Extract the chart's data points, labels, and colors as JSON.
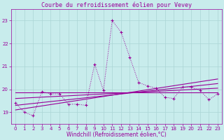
{
  "title": "Courbe du refroidissement éolien pour Vevey",
  "xlabel": "Windchill (Refroidissement éolien,°C)",
  "bg_color": "#c8ecec",
  "grid_color": "#aad4d4",
  "line_color": "#990099",
  "xlim": [
    -0.5,
    23.5
  ],
  "ylim": [
    18.5,
    23.5
  ],
  "yticks": [
    19,
    20,
    21,
    22,
    23
  ],
  "xticks": [
    0,
    1,
    2,
    3,
    4,
    5,
    6,
    7,
    8,
    9,
    10,
    11,
    12,
    13,
    14,
    15,
    16,
    17,
    18,
    19,
    20,
    21,
    22,
    23
  ],
  "series1_x": [
    0,
    1,
    2,
    3,
    4,
    5,
    6,
    7,
    8,
    9,
    10,
    11,
    12,
    13,
    14,
    15,
    16,
    17,
    18,
    19,
    20,
    21,
    22,
    23
  ],
  "series1_y": [
    19.4,
    19.0,
    18.85,
    19.9,
    19.8,
    19.8,
    19.35,
    19.35,
    19.3,
    21.1,
    19.95,
    23.0,
    22.5,
    21.4,
    20.3,
    20.15,
    20.05,
    19.65,
    19.6,
    20.1,
    20.1,
    19.95,
    19.55,
    19.8
  ],
  "line1_x": [
    0,
    23
  ],
  "line1_y": [
    19.6,
    20.05
  ],
  "line2_x": [
    0,
    23
  ],
  "line2_y": [
    19.3,
    20.25
  ],
  "line3_x": [
    0,
    23
  ],
  "line3_y": [
    19.1,
    20.45
  ],
  "line4_x": [
    0,
    23
  ],
  "line4_y": [
    19.87,
    19.87
  ],
  "title_fontsize": 6,
  "tick_fontsize": 5,
  "xlabel_fontsize": 5.5
}
